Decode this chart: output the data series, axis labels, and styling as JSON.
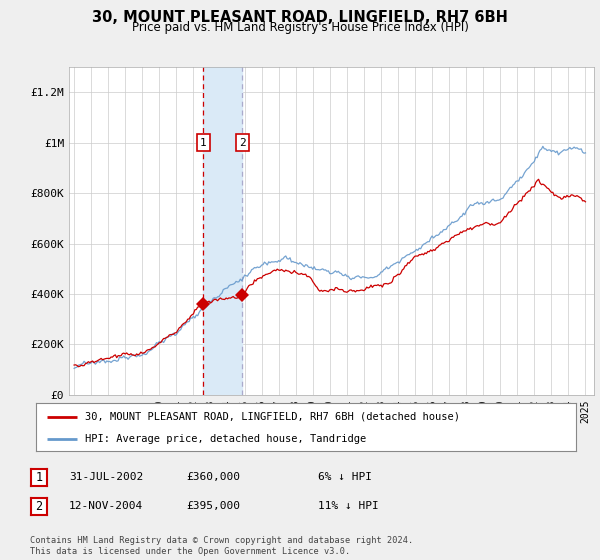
{
  "title": "30, MOUNT PLEASANT ROAD, LINGFIELD, RH7 6BH",
  "subtitle": "Price paid vs. HM Land Registry's House Price Index (HPI)",
  "legend_line1": "30, MOUNT PLEASANT ROAD, LINGFIELD, RH7 6BH (detached house)",
  "legend_line2": "HPI: Average price, detached house, Tandridge",
  "transaction1_date": "31-JUL-2002",
  "transaction1_price": "£360,000",
  "transaction1_hpi": "6% ↓ HPI",
  "transaction2_date": "12-NOV-2004",
  "transaction2_price": "£395,000",
  "transaction2_hpi": "11% ↓ HPI",
  "red_color": "#cc0000",
  "blue_color": "#6699cc",
  "shade_color": "#daeaf7",
  "background_color": "#efefef",
  "plot_bg_color": "#ffffff",
  "footer": "Contains HM Land Registry data © Crown copyright and database right 2024.\nThis data is licensed under the Open Government Licence v3.0.",
  "ylim": [
    0,
    1300000
  ],
  "yticks": [
    0,
    200000,
    400000,
    600000,
    800000,
    1000000,
    1200000
  ],
  "ytick_labels": [
    "£0",
    "£200K",
    "£400K",
    "£600K",
    "£800K",
    "£1M",
    "£1.2M"
  ],
  "t1_year": 2002.58,
  "t2_year": 2004.87,
  "t1_price": 360000,
  "t2_price": 395000
}
